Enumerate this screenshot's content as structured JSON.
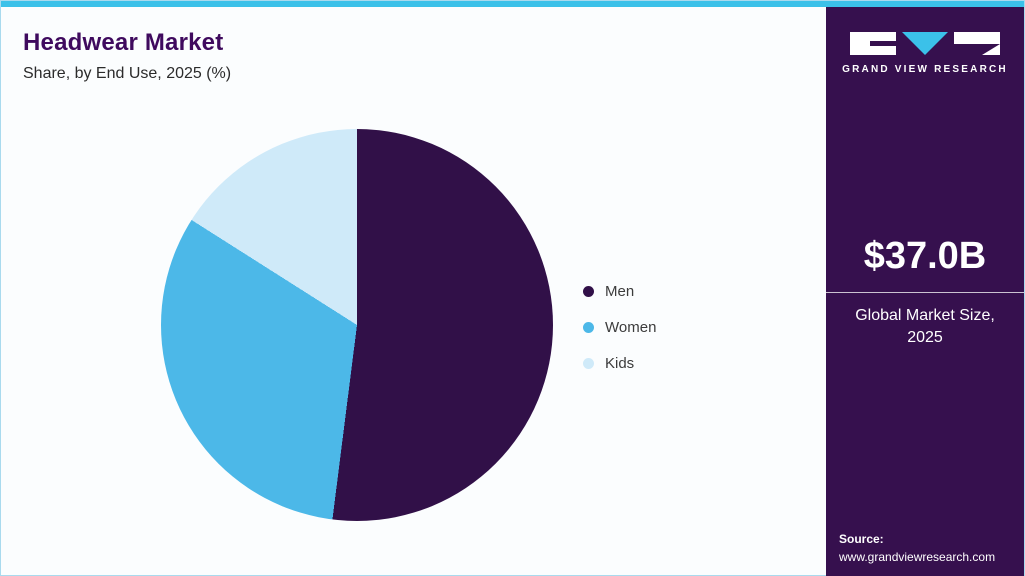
{
  "theme": {
    "top_bar_color": "#3bc1e9",
    "sidebar_background": "#36104e",
    "title_color": "#3f0a5e"
  },
  "header": {
    "title": "Headwear Market",
    "subtitle": "Share, by End Use, 2025 (%)"
  },
  "chart_data": {
    "type": "pie",
    "title": "Headwear Market Share, by End Use, 2025 (%)",
    "categories": [
      "Men",
      "Women",
      "Kids"
    ],
    "values": [
      52,
      32,
      16
    ],
    "unit": "%",
    "colors": [
      "#311048",
      "#4cb8e8",
      "#cfeaf9"
    ],
    "start_angle_deg": 0,
    "direction": "clockwise",
    "legend_position": "right"
  },
  "sidebar": {
    "logo_text": "GRAND VIEW RESEARCH",
    "market_size_value": "$37.0B",
    "market_size_label": "Global Market Size, 2025",
    "source_label": "Source:",
    "source_url": "www.grandviewresearch.com"
  }
}
